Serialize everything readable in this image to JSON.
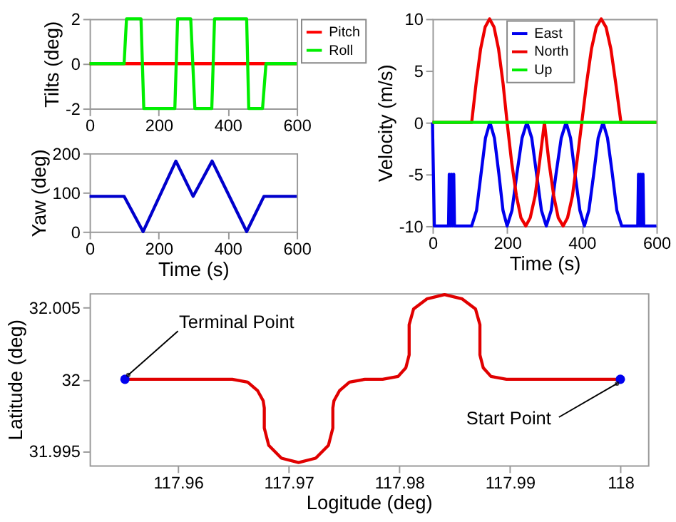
{
  "chart_data": [
    {
      "type": "line",
      "ylabel": "Tilts (deg)",
      "xlim": [
        0,
        600
      ],
      "xticks": [
        0,
        200,
        400,
        600
      ],
      "ylim": [
        -2,
        2
      ],
      "yticks": [
        -2,
        0,
        2
      ],
      "legend": "top right",
      "grid": false,
      "series": [
        {
          "name": "Pitch",
          "color": "#ff0000",
          "x": [
            0,
            600
          ],
          "values": [
            0,
            0
          ]
        },
        {
          "name": "Roll",
          "color": "#00ee00",
          "x": [
            0,
            100,
            107,
            149,
            157,
            247,
            255,
            293,
            305,
            354,
            362,
            455,
            461,
            501,
            511,
            600
          ],
          "values": [
            0,
            0,
            2,
            2,
            -2,
            -2,
            2,
            2,
            -2,
            -2,
            2,
            2,
            -2,
            -2,
            0,
            0
          ]
        }
      ]
    },
    {
      "type": "line",
      "xlabel": "Time (s)",
      "ylabel": "Velocity (m/s)",
      "xlim": [
        0,
        600
      ],
      "xticks": [
        0,
        200,
        400,
        600
      ],
      "ylim": [
        -10,
        10
      ],
      "yticks": [
        -10,
        -5,
        0,
        5,
        10
      ],
      "legend": "top",
      "grid": false,
      "series": [
        {
          "name": "East",
          "color": "#0000ee",
          "x": [
            0,
            5,
            43,
            45,
            48,
            51,
            54,
            57,
            59,
            105,
            118,
            130,
            142,
            154,
            166,
            178,
            189,
            200,
            213,
            226,
            240,
            253,
            266,
            279,
            292,
            305,
            318,
            331,
            345,
            358,
            370,
            382,
            395,
            407,
            419,
            432,
            444,
            457,
            469,
            482,
            494,
            507,
            550,
            552,
            555,
            558,
            561,
            564,
            566,
            600
          ],
          "values": [
            0,
            -10,
            -10,
            -5,
            -10,
            -5,
            -10,
            -5,
            -10,
            -10,
            -8.5,
            -5,
            -1.5,
            0,
            -1.5,
            -5,
            -8.5,
            -10,
            -8.5,
            -5,
            -1.5,
            0,
            -1.5,
            -5,
            -8.5,
            -10,
            -8.5,
            -5,
            -1.5,
            0,
            -1.5,
            -5,
            -8.5,
            -10,
            -8.5,
            -5,
            -1.5,
            0,
            -1.5,
            -5,
            -8.5,
            -10,
            -10,
            -5,
            -10,
            -5,
            -10,
            -5,
            -10,
            -10
          ]
        },
        {
          "name": "North",
          "color": "#ee0000",
          "x": [
            0,
            105,
            117,
            129,
            141,
            153,
            165,
            177,
            189,
            200,
            212,
            225,
            237,
            250,
            262,
            275,
            287,
            300,
            312,
            325,
            337,
            350,
            362,
            375,
            387,
            400,
            413,
            426,
            439,
            452,
            465,
            478,
            491,
            505,
            600
          ],
          "values": [
            0,
            0,
            3.8,
            7.1,
            9.2,
            10,
            9.2,
            7.1,
            3.8,
            0,
            -3.8,
            -7.1,
            -9.2,
            -10,
            -9.2,
            -7.1,
            -3.8,
            0,
            -3.8,
            -7.1,
            -9.2,
            -10,
            -9.2,
            -7.1,
            -3.8,
            0,
            3.8,
            7.1,
            9.2,
            10,
            9.2,
            7.1,
            3.8,
            0,
            0
          ]
        },
        {
          "name": "Up",
          "color": "#00ee00",
          "x": [
            0,
            600
          ],
          "values": [
            0,
            0
          ]
        }
      ]
    },
    {
      "type": "line",
      "xlabel": "Time (s)",
      "ylabel": "Yaw (deg)",
      "xlim": [
        0,
        600
      ],
      "xticks": [
        0,
        200,
        400,
        600
      ],
      "ylim": [
        0,
        200
      ],
      "yticks": [
        0,
        100,
        200
      ],
      "grid": false,
      "series": [
        {
          "color": "#0000cc",
          "x": [
            0,
            100,
            155,
            250,
            300,
            355,
            455,
            505,
            600
          ],
          "values": [
            90,
            90,
            0,
            180,
            90,
            180,
            0,
            90,
            90
          ]
        }
      ]
    },
    {
      "type": "line",
      "xlabel": "Logitude (deg)",
      "ylabel": "Latitude (deg)",
      "xlim": [
        117.952,
        118.0025
      ],
      "xticks": [
        117.96,
        117.97,
        117.98,
        117.99,
        118
      ],
      "ylim": [
        31.994,
        32.006
      ],
      "yticks": [
        31.995,
        32,
        32.005
      ],
      "grid": false,
      "annotations": [
        {
          "text": "Terminal Point",
          "x": 117.9552,
          "y": 32
        },
        {
          "text": "Start Point",
          "x": 118,
          "y": 32
        }
      ],
      "series": [
        {
          "color": "#e00000",
          "x": [
            118,
            117.9897,
            117.9883,
            117.9876,
            117.9873,
            117.9873,
            117.9869,
            117.9857,
            117.9841,
            117.9825,
            117.9813,
            117.9809,
            117.9809,
            117.9806,
            117.9799,
            117.9785,
            117.9769,
            117.9755,
            117.9746,
            117.9741,
            117.974,
            117.974,
            117.9736,
            117.97245,
            117.9709,
            117.96935,
            117.9682,
            117.9678,
            117.9678,
            117.9677,
            117.9672,
            117.9663,
            117.9649,
            117.9552
          ],
          "values": [
            32,
            32,
            32.0002,
            32.0008,
            32.0017,
            32.0038,
            32.0049,
            32.0056,
            32.0059,
            32.0056,
            32.0049,
            32.0038,
            32.0017,
            32.0008,
            32.0002,
            32,
            32,
            31.9998,
            31.9992,
            31.9985,
            31.998,
            31.9966,
            31.9954,
            31.9945,
            31.9942,
            31.9945,
            31.9954,
            31.9966,
            31.998,
            31.9985,
            31.9992,
            31.9998,
            32,
            32
          ]
        },
        {
          "type": "scatter",
          "marker": "circle",
          "color": "#0000ee",
          "x": [
            118
          ],
          "values": [
            32
          ]
        },
        {
          "type": "scatter",
          "marker": "circle",
          "color": "#0000ee",
          "x": [
            117.9552
          ],
          "values": [
            32
          ]
        }
      ]
    }
  ]
}
